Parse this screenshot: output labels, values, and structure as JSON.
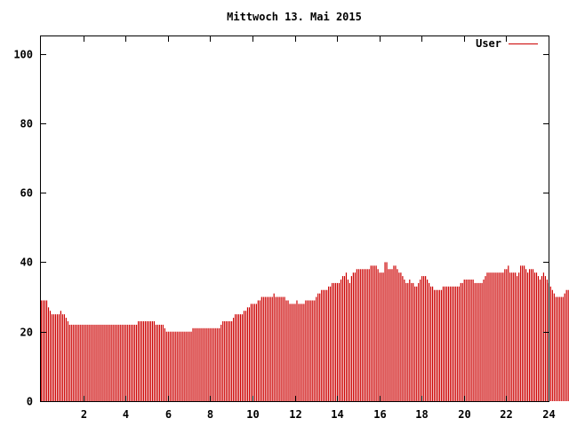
{
  "chart_data": {
    "type": "bar",
    "title": "Mittwoch 13. Mai 2015",
    "xlabel": "",
    "ylabel": "",
    "xlim": [
      0,
      24
    ],
    "ylim": [
      0,
      105
    ],
    "x_ticks": [
      2,
      4,
      6,
      8,
      10,
      12,
      14,
      16,
      18,
      20,
      22,
      24
    ],
    "y_ticks": [
      0,
      20,
      40,
      60,
      80,
      100
    ],
    "grid": false,
    "legend": "top-right",
    "series": [
      {
        "name": "User",
        "color": "#cc0000",
        "bar_width_hours": 0.0833,
        "values": [
          29,
          29,
          29,
          29,
          27,
          26,
          25,
          25,
          25,
          25,
          25,
          26,
          25,
          25,
          24,
          23,
          22,
          22,
          22,
          22,
          22,
          22,
          22,
          22,
          22,
          22,
          22,
          22,
          22,
          22,
          22,
          22,
          22,
          22,
          22,
          22,
          22,
          22,
          22,
          22,
          22,
          22,
          22,
          22,
          22,
          22,
          22,
          22,
          22,
          22,
          22,
          22,
          22,
          22,
          22,
          23,
          23,
          23,
          23,
          23,
          23,
          23,
          23,
          23,
          23,
          22,
          22,
          22,
          22,
          22,
          21,
          20,
          20,
          20,
          20,
          20,
          20,
          20,
          20,
          20,
          20,
          20,
          20,
          20,
          20,
          20,
          21,
          21,
          21,
          21,
          21,
          21,
          21,
          21,
          21,
          21,
          21,
          21,
          21,
          21,
          21,
          21,
          22,
          23,
          23,
          23,
          23,
          23,
          23,
          24,
          25,
          25,
          25,
          25,
          25,
          26,
          26,
          27,
          27,
          28,
          28,
          28,
          28,
          29,
          29,
          30,
          30,
          30,
          30,
          30,
          30,
          30,
          31,
          30,
          30,
          30,
          30,
          30,
          30,
          29,
          29,
          28,
          28,
          28,
          28,
          29,
          28,
          28,
          28,
          28,
          29,
          29,
          29,
          29,
          29,
          29,
          30,
          31,
          31,
          32,
          32,
          32,
          32,
          33,
          33,
          34,
          34,
          34,
          34,
          34,
          35,
          36,
          36,
          37,
          35,
          34,
          36,
          37,
          37,
          38,
          38,
          38,
          38,
          38,
          38,
          38,
          38,
          39,
          39,
          39,
          39,
          38,
          37,
          37,
          37,
          40,
          40,
          38,
          38,
          38,
          39,
          39,
          38,
          37,
          37,
          36,
          35,
          34,
          34,
          35,
          34,
          34,
          33,
          33,
          34,
          35,
          36,
          36,
          36,
          35,
          34,
          33,
          33,
          32,
          32,
          32,
          32,
          32,
          33,
          33,
          33,
          33,
          33,
          33,
          33,
          33,
          33,
          33,
          34,
          34,
          35,
          35,
          35,
          35,
          35,
          35,
          34,
          34,
          34,
          34,
          34,
          35,
          36,
          37,
          37,
          37,
          37,
          37,
          37,
          37,
          37,
          37,
          37,
          38,
          38,
          39,
          37,
          37,
          37,
          37,
          36,
          37,
          39,
          39,
          39,
          38,
          37,
          38,
          38,
          38,
          37,
          37,
          36,
          35,
          36,
          37,
          36,
          35,
          34,
          33,
          32,
          31,
          30,
          30,
          30,
          30,
          30,
          31,
          32,
          32
        ]
      }
    ]
  }
}
